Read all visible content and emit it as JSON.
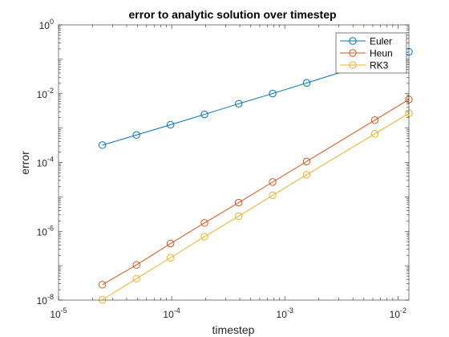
{
  "chart_data": {
    "type": "line",
    "title": "error to analytic solution over timestep",
    "xlabel": "timestep",
    "ylabel": "error",
    "xscale": "log",
    "yscale": "log",
    "xlim": [
      1e-05,
      0.0125
    ],
    "ylim": [
      1e-08,
      1
    ],
    "grid": false,
    "legend_position": "top-right",
    "x_ticks": [
      {
        "value": 1e-05,
        "label": "10",
        "exp": "-5"
      },
      {
        "value": 0.0001,
        "label": "10",
        "exp": "-4"
      },
      {
        "value": 0.001,
        "label": "10",
        "exp": "-3"
      },
      {
        "value": 0.01,
        "label": "10",
        "exp": "-2"
      }
    ],
    "y_ticks": [
      {
        "value": 1e-08,
        "label": "10",
        "exp": "-8"
      },
      {
        "value": 1e-06,
        "label": "10",
        "exp": "-6"
      },
      {
        "value": 0.0001,
        "label": "10",
        "exp": "-4"
      },
      {
        "value": 0.01,
        "label": "10",
        "exp": "-2"
      },
      {
        "value": 1,
        "label": "10",
        "exp": "0"
      }
    ],
    "series": [
      {
        "name": "Euler",
        "color": "#0072BD",
        "x": [
          2.44e-05,
          4.88e-05,
          9.77e-05,
          0.000195,
          0.000391,
          0.000781,
          0.00156,
          0.00625,
          0.0125
        ],
        "y": [
          0.00032,
          0.00063,
          0.00125,
          0.0025,
          0.0051,
          0.0101,
          0.0205,
          0.085,
          0.165
        ]
      },
      {
        "name": "Heun",
        "color": "#D95319",
        "x": [
          2.44e-05,
          4.88e-05,
          9.77e-05,
          0.000195,
          0.000391,
          0.000781,
          0.00156,
          0.00625,
          0.0125
        ],
        "y": [
          2.8e-08,
          1.05e-07,
          4.4e-07,
          1.75e-06,
          6.8e-06,
          2.7e-05,
          0.000107,
          0.0017,
          0.0068
        ]
      },
      {
        "name": "RK3",
        "color": "#EDB120",
        "x": [
          2.44e-05,
          4.88e-05,
          9.77e-05,
          0.000195,
          0.000391,
          0.000781,
          0.00156,
          0.00625,
          0.0125
        ],
        "y": [
          1.02e-08,
          4.2e-08,
          1.7e-07,
          7e-07,
          2.75e-06,
          1.11e-05,
          4.4e-05,
          0.00068,
          0.0027
        ]
      }
    ]
  }
}
